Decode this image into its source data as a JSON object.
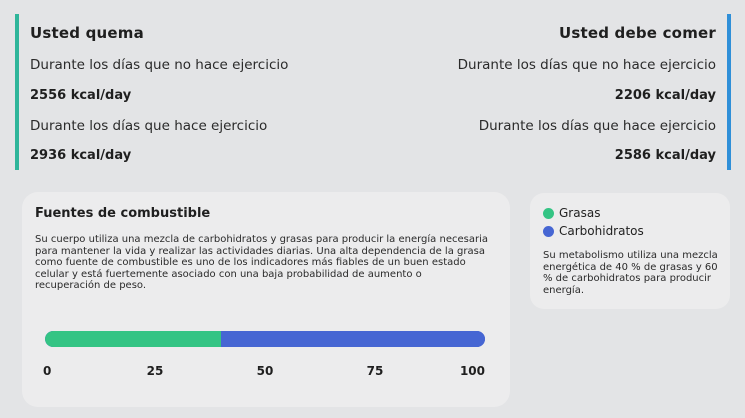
{
  "colors": {
    "left_accent": "#2fb59a",
    "right_accent": "#2f8fd8",
    "fat": "#34c484",
    "carbs": "#4666d3"
  },
  "burn": {
    "title": "Usted quema",
    "rest_label": "Durante los días que no hace ejercicio",
    "rest_value": "2556 kcal/day",
    "active_label": "Durante los días que hace ejercicio",
    "active_value": "2936 kcal/day"
  },
  "eat": {
    "title": "Usted debe comer",
    "rest_label": "Durante los días que no hace ejercicio",
    "rest_value": "2206 kcal/day",
    "active_label": "Durante los días que hace ejercicio",
    "active_value": "2586 kcal/day"
  },
  "fuel": {
    "title": "Fuentes de combustible",
    "description": "Su cuerpo utiliza una mezcla de carbohidratos y grasas para producir la energía necesaria para mantener la vida y realizar las actividades diarias. Una alta dependencia de la grasa como fuente de combustible es uno de los indicadores más fiables de un buen estado celular y está fuertemente asociado con una baja probabilidad de aumento o recuperación de peso.",
    "fat_percent": 40,
    "carb_percent": 60,
    "ticks": [
      "0",
      "25",
      "50",
      "75",
      "100"
    ]
  },
  "legend": {
    "fat_label": "Grasas",
    "carbs_label": "Carbohidratos",
    "note": "Su metabolismo utiliza una mezcla energética de 40 % de grasas y 60 % de carbohidratos para producir energía."
  }
}
